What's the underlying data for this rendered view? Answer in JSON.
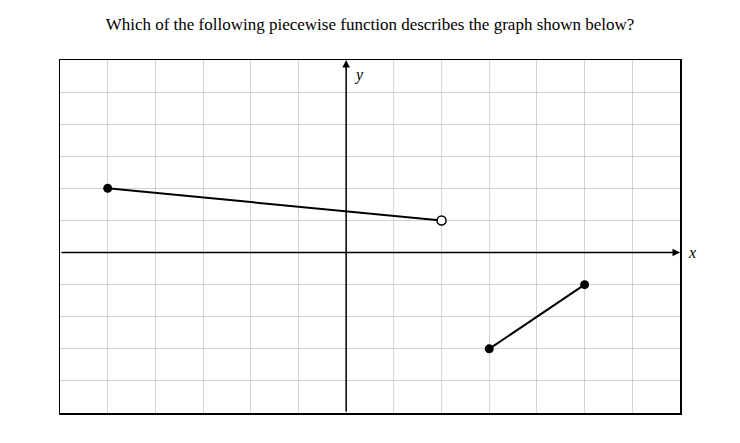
{
  "chart_data": {
    "type": "line",
    "title": "Which of the following piecewise function describes the graph shown below?",
    "xlabel": "x",
    "ylabel": "y",
    "series": [
      {
        "type": "line",
        "color": "#000000",
        "marker": "none",
        "x": [
          -5,
          2
        ],
        "values": [
          2,
          1
        ]
      },
      {
        "type": "scatter",
        "color": "#000000",
        "marker": "circle",
        "x": [
          -5
        ],
        "values": [
          2
        ]
      },
      {
        "type": "scatter",
        "color": "#000000",
        "marker": "circle-open",
        "x": [
          2
        ],
        "values": [
          1
        ]
      },
      {
        "type": "line",
        "color": "#000000",
        "marker": "circle",
        "x": [
          3,
          5
        ],
        "values": [
          -3,
          -1
        ]
      }
    ],
    "xlim": [
      -6,
      7
    ],
    "ylim": [
      -5,
      6
    ],
    "xticks": [
      -6,
      -5,
      -4,
      -3,
      -2,
      -1,
      0,
      1,
      2,
      3,
      4,
      5,
      6,
      7
    ],
    "yticks": [
      -5,
      -4,
      -3,
      -2,
      -1,
      0,
      1,
      2,
      3,
      4,
      5,
      6
    ],
    "grid": true,
    "tick_labels": false
  }
}
